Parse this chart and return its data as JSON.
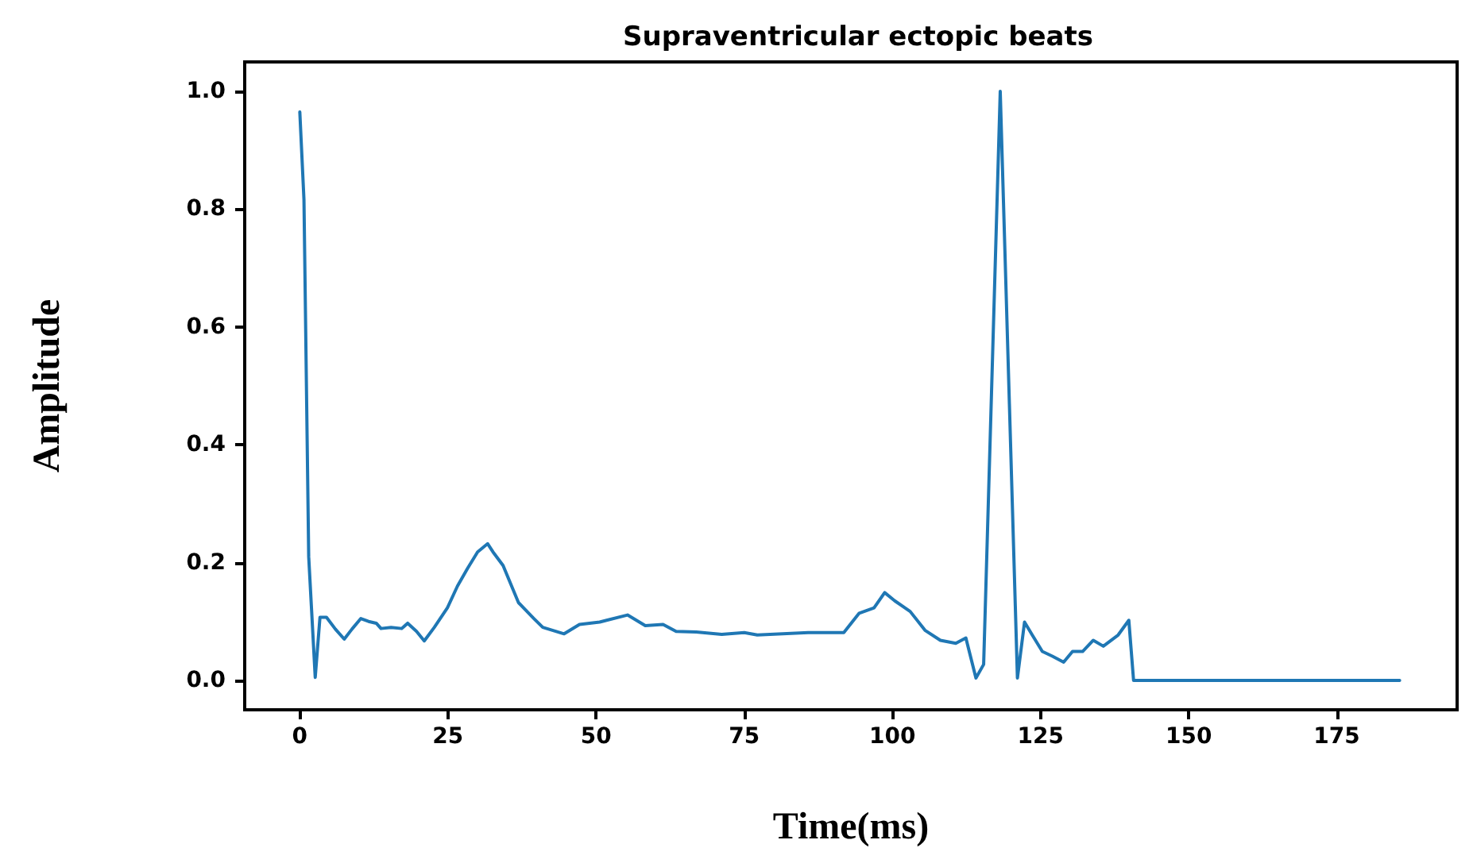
{
  "chart_data": {
    "type": "line",
    "title": "Supraventricular ectopic beats",
    "xlabel": "Time(ms)",
    "ylabel": "Amplitude",
    "grid": false,
    "marker": "none",
    "line_style": "solid",
    "xlim": [
      -9.3,
      195.3
    ],
    "xticks": [
      0,
      25,
      50,
      75,
      100,
      125,
      150,
      175
    ],
    "ylim": [
      -0.05,
      1.05
    ],
    "yticks": [
      {
        "value": 0,
        "label": "0.0"
      },
      0.2,
      0.4,
      0.6,
      0.8,
      {
        "value": 1,
        "label": "1.0"
      }
    ],
    "series": [
      {
        "color": "#1f77b4",
        "x": [
          0,
          0.7,
          1.5,
          2.6,
          3.4,
          4.5,
          6,
          7.5,
          8.8,
          10.3,
          11.6,
          12.9,
          13.7,
          15.4,
          17.2,
          18.2,
          19.7,
          21,
          22.7,
          24.9,
          26.6,
          28.3,
          30,
          31.7,
          32.6,
          34.3,
          36.9,
          39.5,
          41,
          44.6,
          47.2,
          50.6,
          55.3,
          58.3,
          61.3,
          63.5,
          66.9,
          71.2,
          75,
          77.2,
          81.5,
          85.8,
          91.8,
          94.4,
          96.9,
          98.7,
          100.4,
          103,
          105.5,
          108.1,
          110.7,
          112.4,
          114.1,
          115.4,
          118.2,
          121.1,
          122.3,
          123.6,
          125.3,
          127,
          128.9,
          130.4,
          132.1,
          133.9,
          135.6,
          138.1,
          139.9,
          140.7,
          185.6
        ],
        "values": [
          0.965,
          0.816,
          0.21,
          0.005,
          0.107,
          0.107,
          0.087,
          0.07,
          0.087,
          0.105,
          0.1,
          0.097,
          0.088,
          0.09,
          0.088,
          0.097,
          0.083,
          0.067,
          0.09,
          0.123,
          0.16,
          0.19,
          0.218,
          0.232,
          0.218,
          0.195,
          0.132,
          0.105,
          0.09,
          0.079,
          0.095,
          0.099,
          0.111,
          0.093,
          0.095,
          0.083,
          0.082,
          0.078,
          0.081,
          0.077,
          0.079,
          0.081,
          0.081,
          0.114,
          0.123,
          0.149,
          0.135,
          0.117,
          0.085,
          0.068,
          0.063,
          0.072,
          0.004,
          0.027,
          1.0,
          0.004,
          0.099,
          0.077,
          0.049,
          0.041,
          0.031,
          0.049,
          0.049,
          0.068,
          0.058,
          0.077,
          0.102,
          0.0,
          0.0
        ]
      }
    ]
  }
}
